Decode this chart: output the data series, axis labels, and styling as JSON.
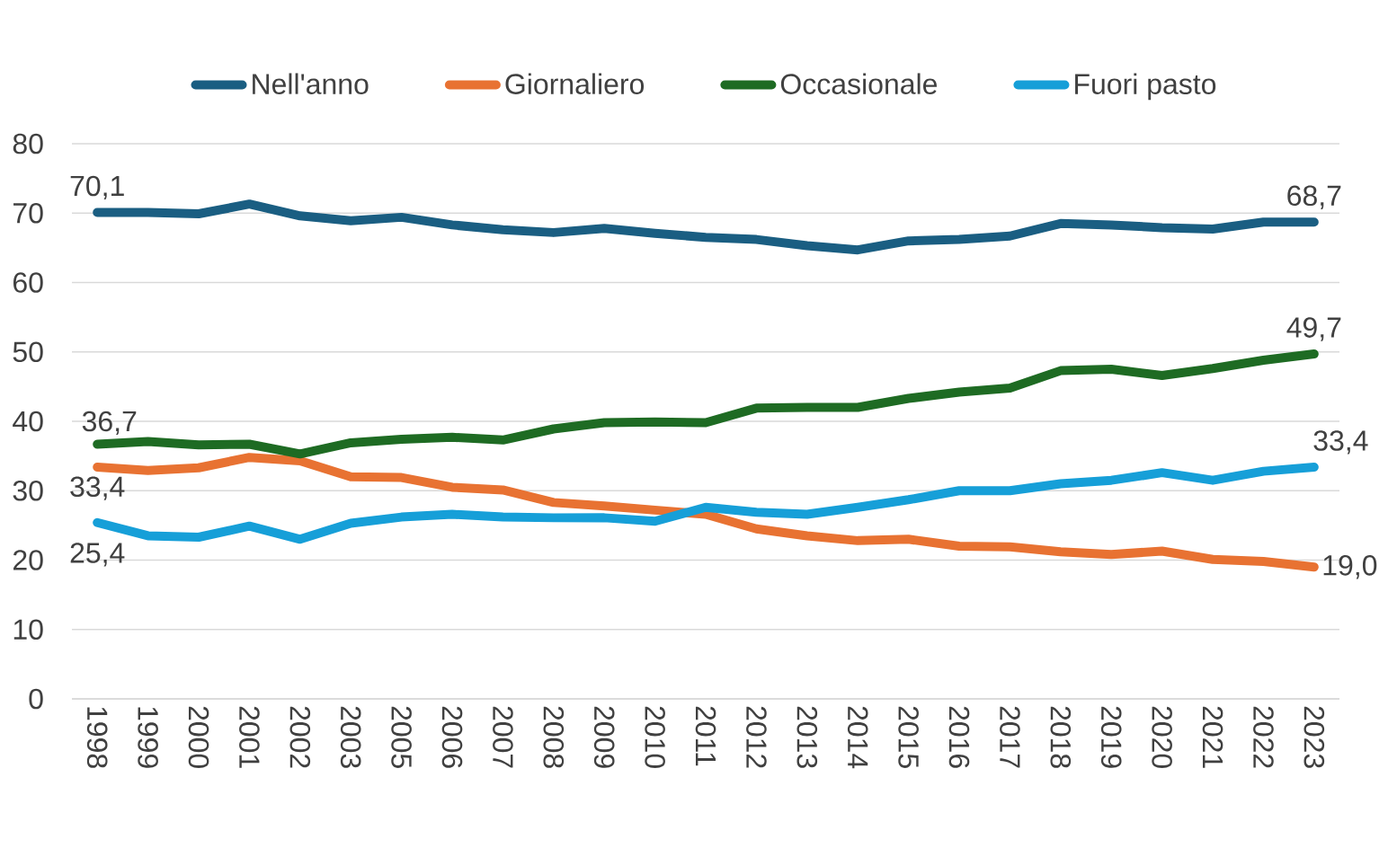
{
  "chart_data": {
    "type": "line",
    "categories": [
      "1998",
      "1999",
      "2000",
      "2001",
      "2002",
      "2003",
      "2005",
      "2006",
      "2007",
      "2008",
      "2009",
      "2010",
      "2011",
      "2012",
      "2013",
      "2014",
      "2015",
      "2016",
      "2017",
      "2018",
      "2019",
      "2020",
      "2021",
      "2022",
      "2023"
    ],
    "series": [
      {
        "name": "Nell'anno",
        "color": "#1a5e82",
        "values": [
          70.1,
          70.1,
          69.9,
          71.3,
          69.6,
          68.9,
          69.4,
          68.3,
          67.6,
          67.2,
          67.8,
          67.1,
          66.5,
          66.2,
          65.3,
          64.7,
          66.0,
          66.2,
          66.7,
          68.5,
          68.3,
          67.9,
          67.7,
          68.7,
          68.7
        ],
        "value_labels": [
          "70,1",
          null,
          null,
          null,
          null,
          null,
          null,
          null,
          null,
          null,
          null,
          null,
          null,
          null,
          null,
          null,
          null,
          null,
          null,
          null,
          null,
          null,
          null,
          null,
          "68,7"
        ]
      },
      {
        "name": "Giornaliero",
        "color": "#e87232",
        "values": [
          33.4,
          32.9,
          33.3,
          34.8,
          34.3,
          32.0,
          31.9,
          30.5,
          30.1,
          28.3,
          27.8,
          27.2,
          26.6,
          24.5,
          23.5,
          22.8,
          23.0,
          22.0,
          21.9,
          21.2,
          20.8,
          21.3,
          20.1,
          19.8,
          19.0
        ],
        "value_labels": [
          "33,4",
          null,
          null,
          null,
          null,
          null,
          null,
          null,
          null,
          null,
          null,
          null,
          null,
          null,
          null,
          null,
          null,
          null,
          null,
          null,
          null,
          null,
          null,
          null,
          "19,0"
        ]
      },
      {
        "name": "Occasionale",
        "color": "#1e6b23",
        "values": [
          36.7,
          37.1,
          36.6,
          36.7,
          35.3,
          36.9,
          37.4,
          37.7,
          37.3,
          38.9,
          39.8,
          39.9,
          39.8,
          41.9,
          42.0,
          42.0,
          43.3,
          44.2,
          44.8,
          47.3,
          47.5,
          46.6,
          47.6,
          48.8,
          49.7
        ],
        "value_labels": [
          "36,7",
          null,
          null,
          null,
          null,
          null,
          null,
          null,
          null,
          null,
          null,
          null,
          null,
          null,
          null,
          null,
          null,
          null,
          null,
          null,
          null,
          null,
          null,
          null,
          "49,7"
        ]
      },
      {
        "name": "Fuori pasto",
        "color": "#169fd8",
        "values": [
          25.4,
          23.5,
          23.3,
          24.9,
          23.0,
          25.3,
          26.2,
          26.6,
          26.2,
          26.1,
          26.1,
          25.6,
          27.6,
          26.9,
          26.6,
          27.6,
          28.7,
          30.0,
          30.0,
          31.0,
          31.5,
          32.6,
          31.5,
          32.8,
          33.4
        ],
        "value_labels": [
          "25,4",
          null,
          null,
          null,
          null,
          null,
          null,
          null,
          null,
          null,
          null,
          null,
          null,
          null,
          null,
          null,
          null,
          null,
          null,
          null,
          null,
          null,
          null,
          null,
          "33,4"
        ]
      }
    ],
    "ylim": [
      0,
      80
    ],
    "yticks": [
      0,
      10,
      20,
      30,
      40,
      50,
      60,
      70,
      80
    ],
    "grid": "y",
    "legend": "top"
  }
}
